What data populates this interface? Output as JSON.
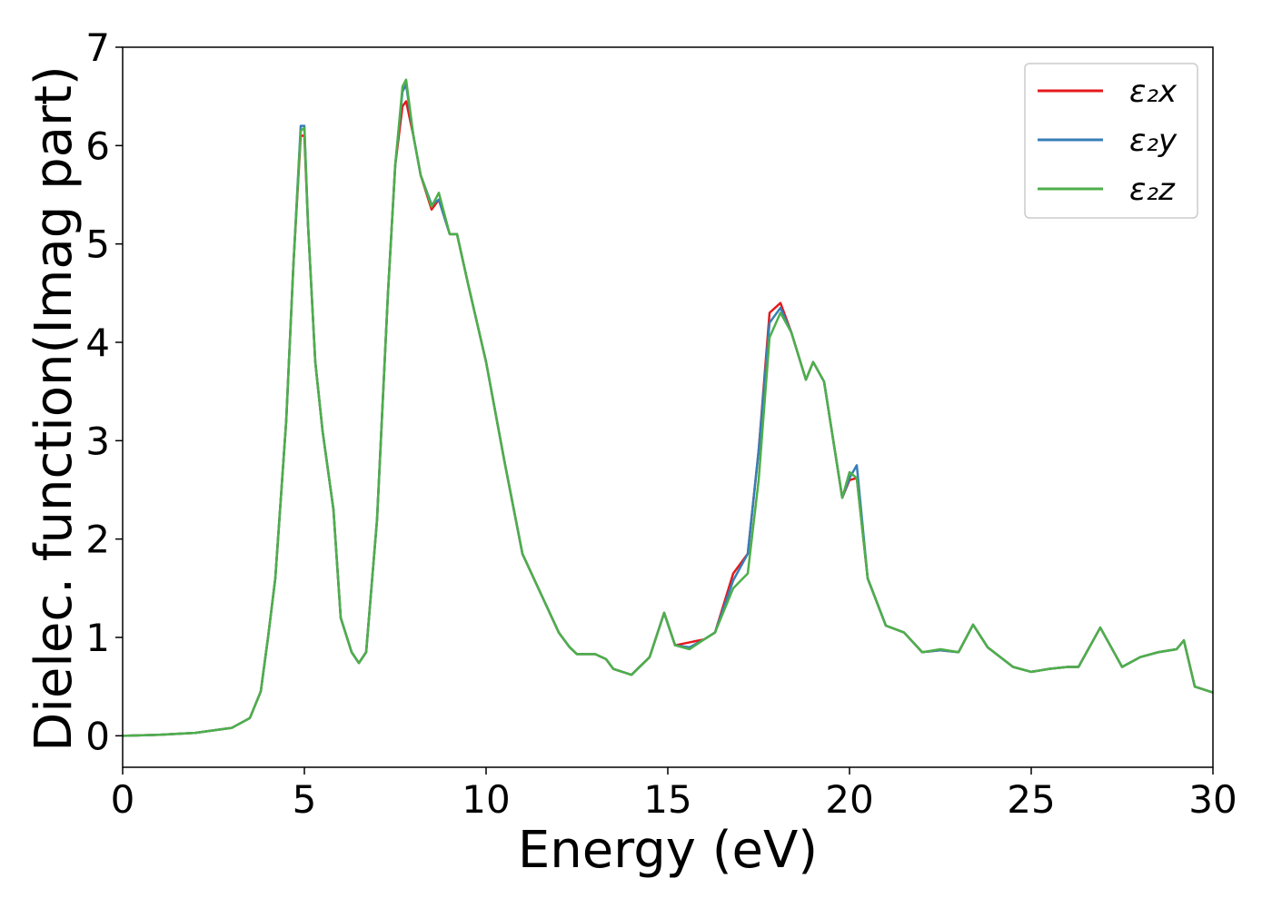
{
  "chart_data": {
    "type": "line",
    "xlabel": "Energy (eV)",
    "ylabel": "Dielec. function(Imag part)",
    "x": [
      0,
      1,
      2,
      3,
      3.5,
      3.8,
      4,
      4.2,
      4.5,
      4.7,
      4.9,
      5,
      5.1,
      5.3,
      5.5,
      5.8,
      6,
      6.3,
      6.5,
      6.7,
      7,
      7.3,
      7.5,
      7.7,
      7.8,
      8,
      8.2,
      8.5,
      8.7,
      9,
      9.2,
      9.5,
      10,
      10.5,
      11,
      11.5,
      12,
      12.3,
      12.5,
      13,
      13.3,
      13.5,
      14,
      14.5,
      14.9,
      15.2,
      15.6,
      16,
      16.3,
      16.8,
      17.2,
      17.5,
      17.8,
      18.1,
      18.4,
      18.8,
      19,
      19.3,
      19.8,
      20,
      20.2,
      20.5,
      21,
      21.5,
      22,
      22.5,
      23,
      23.4,
      23.8,
      24.5,
      25,
      25.5,
      26,
      26.3,
      26.9,
      27.2,
      27.5,
      28,
      28.5,
      29,
      29.2,
      29.5,
      30
    ],
    "series": [
      {
        "name": "ε₂x",
        "color": "#e41a1c",
        "values": [
          0,
          0.01,
          0.03,
          0.08,
          0.18,
          0.45,
          1.0,
          1.6,
          3.2,
          4.8,
          6.1,
          6.1,
          5.2,
          3.8,
          3.1,
          2.3,
          1.2,
          0.85,
          0.74,
          0.85,
          2.2,
          4.5,
          5.8,
          6.4,
          6.45,
          6.1,
          5.7,
          5.35,
          5.45,
          5.1,
          5.1,
          4.6,
          3.8,
          2.8,
          1.85,
          1.45,
          1.05,
          0.9,
          0.83,
          0.83,
          0.78,
          0.68,
          0.62,
          0.8,
          1.25,
          0.92,
          0.95,
          0.98,
          1.05,
          1.65,
          1.85,
          2.9,
          4.3,
          4.4,
          4.1,
          3.62,
          3.8,
          3.6,
          2.42,
          2.6,
          2.62,
          1.6,
          1.12,
          1.05,
          0.85,
          0.87,
          0.85,
          1.13,
          0.9,
          0.7,
          0.65,
          0.68,
          0.7,
          0.7,
          1.1,
          0.9,
          0.7,
          0.8,
          0.85,
          0.88,
          0.97,
          0.5,
          0.44
        ]
      },
      {
        "name": "ε₂y",
        "color": "#377eb8",
        "values": [
          0,
          0.01,
          0.03,
          0.08,
          0.18,
          0.45,
          1.0,
          1.6,
          3.2,
          4.8,
          6.2,
          6.2,
          5.2,
          3.8,
          3.1,
          2.3,
          1.2,
          0.85,
          0.74,
          0.85,
          2.2,
          4.5,
          5.8,
          6.55,
          6.62,
          6.1,
          5.7,
          5.4,
          5.45,
          5.1,
          5.1,
          4.6,
          3.8,
          2.8,
          1.85,
          1.45,
          1.05,
          0.9,
          0.83,
          0.83,
          0.78,
          0.68,
          0.62,
          0.8,
          1.25,
          0.92,
          0.9,
          0.98,
          1.05,
          1.58,
          1.85,
          2.9,
          4.2,
          4.35,
          4.1,
          3.62,
          3.8,
          3.6,
          2.42,
          2.62,
          2.75,
          1.6,
          1.12,
          1.05,
          0.85,
          0.87,
          0.85,
          1.13,
          0.9,
          0.7,
          0.65,
          0.68,
          0.7,
          0.7,
          1.1,
          0.9,
          0.7,
          0.8,
          0.85,
          0.88,
          0.97,
          0.5,
          0.44
        ]
      },
      {
        "name": "ε₂z",
        "color": "#4daf4a",
        "values": [
          0,
          0.01,
          0.03,
          0.08,
          0.18,
          0.45,
          1.0,
          1.6,
          3.2,
          4.8,
          6.15,
          6.18,
          5.2,
          3.8,
          3.1,
          2.3,
          1.2,
          0.85,
          0.74,
          0.85,
          2.2,
          4.5,
          5.8,
          6.6,
          6.67,
          6.1,
          5.7,
          5.38,
          5.52,
          5.1,
          5.1,
          4.6,
          3.8,
          2.8,
          1.85,
          1.45,
          1.05,
          0.9,
          0.83,
          0.83,
          0.78,
          0.68,
          0.62,
          0.8,
          1.25,
          0.92,
          0.88,
          0.98,
          1.05,
          1.5,
          1.65,
          2.6,
          4.05,
          4.3,
          4.1,
          3.62,
          3.8,
          3.6,
          2.42,
          2.68,
          2.62,
          1.6,
          1.12,
          1.05,
          0.85,
          0.88,
          0.85,
          1.13,
          0.9,
          0.7,
          0.65,
          0.68,
          0.7,
          0.7,
          1.1,
          0.9,
          0.7,
          0.8,
          0.85,
          0.88,
          0.97,
          0.5,
          0.44
        ]
      }
    ],
    "xlim": [
      0,
      30
    ],
    "xticks": [
      0,
      5,
      10,
      15,
      20,
      25,
      30
    ],
    "ylim": [
      -0.32,
      7
    ],
    "yticks": [
      0,
      1,
      2,
      3,
      4,
      5,
      6,
      7
    ],
    "grid": false,
    "legend": "upper right"
  }
}
